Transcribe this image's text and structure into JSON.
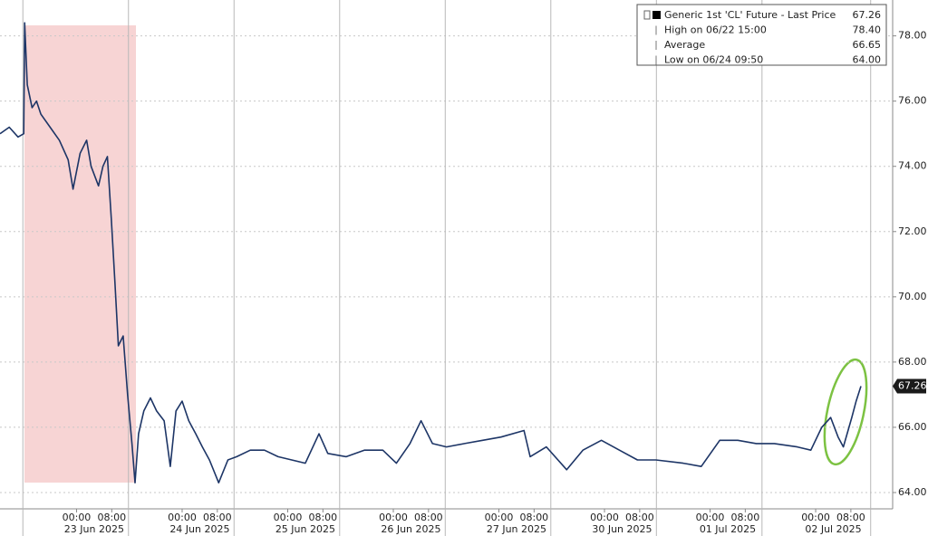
{
  "chart_data": {
    "type": "line",
    "x": [
      -17.4,
      -15.3,
      -13.3,
      -12.0,
      -11.8,
      -11.2,
      -10.1,
      -9.1,
      -8.1,
      -6.0,
      -3.9,
      -1.9,
      -0.8,
      0.8,
      2.3,
      3.3,
      5.0,
      6.0,
      7.0,
      7.9,
      8.7,
      9.5,
      10.6,
      11.6,
      12.6,
      13.3,
      14.1,
      15.3,
      16.8,
      18.2,
      19.9,
      21.3,
      22.6,
      24.0,
      25.5,
      27.1,
      28.6,
      30.2,
      32.3,
      34.4,
      36.4,
      39.5,
      42.7,
      45.8,
      48.9,
      52.0,
      55.1,
      57.1,
      61.3,
      65.4,
      69.6,
      72.7,
      75.8,
      78.3,
      80.9,
      84.1,
      88.2,
      92.3,
      96.5,
      101.7,
      103.1,
      106.8,
      111.4,
      115.1,
      119.3,
      123.4,
      127.5,
      131.7,
      137.9,
      142.0,
      146.2,
      150.3,
      154.5,
      158.6,
      163.8,
      166.9,
      169.4,
      171.4,
      173.1,
      174.3,
      176.2,
      177.2,
      178.3
    ],
    "series": [
      {
        "name": "Generic 1st 'CL' Future - Last Price",
        "color": "#1d3566",
        "values": [
          75.0,
          75.2,
          74.9,
          75.0,
          78.4,
          76.5,
          75.8,
          76.0,
          75.6,
          75.2,
          74.8,
          74.2,
          73.3,
          74.4,
          74.8,
          74.0,
          73.4,
          74.0,
          74.3,
          72.4,
          70.5,
          68.5,
          68.8,
          67.0,
          65.5,
          64.3,
          65.8,
          66.5,
          66.9,
          66.5,
          66.2,
          64.8,
          66.5,
          66.8,
          66.2,
          65.8,
          65.4,
          65.0,
          64.3,
          65.0,
          65.1,
          65.3,
          65.3,
          65.1,
          65.0,
          64.9,
          65.8,
          65.2,
          65.1,
          65.3,
          65.3,
          64.9,
          65.5,
          66.2,
          65.5,
          65.4,
          65.5,
          65.6,
          65.7,
          65.9,
          65.1,
          65.4,
          64.7,
          65.3,
          65.6,
          65.3,
          65.0,
          65.0,
          64.9,
          64.8,
          65.6,
          65.6,
          65.5,
          65.5,
          65.4,
          65.3,
          66.0,
          66.3,
          65.7,
          65.4,
          66.3,
          66.8,
          67.26
        ]
      }
    ],
    "legend_stats": [
      {
        "label": "High on 06/22 15:00",
        "value": "78.40"
      },
      {
        "label": "Average",
        "value": "66.65"
      },
      {
        "label": "Low on 06/24 09:50",
        "value": "64.00"
      }
    ],
    "legend_position": "upper right",
    "xlim": [
      -17.4,
      185.5
    ],
    "ylim": [
      63.5,
      79.1
    ],
    "yticks": [
      {
        "value": 64,
        "label": "64.00"
      },
      {
        "value": 66,
        "label": "66.00"
      },
      {
        "value": 68,
        "label": "68.00"
      },
      {
        "value": 70,
        "label": "70.00"
      },
      {
        "value": 72,
        "label": "72.00"
      },
      {
        "value": 74,
        "label": "74.00"
      },
      {
        "value": 76,
        "label": "76.00"
      },
      {
        "value": 78,
        "label": "78.00"
      }
    ],
    "xticks": [
      {
        "value": 0,
        "label": "00:00"
      },
      {
        "value": 8,
        "label": "08:00"
      },
      {
        "value": 24,
        "label": "00:00"
      },
      {
        "value": 32,
        "label": "08:00"
      },
      {
        "value": 48,
        "label": "00:00"
      },
      {
        "value": 56,
        "label": "08:00"
      },
      {
        "value": 72,
        "label": "00:00"
      },
      {
        "value": 80,
        "label": "08:00"
      },
      {
        "value": 96,
        "label": "00:00"
      },
      {
        "value": 104,
        "label": "08:00"
      },
      {
        "value": 120,
        "label": "00:00"
      },
      {
        "value": 128,
        "label": "08:00"
      },
      {
        "value": 144,
        "label": "00:00"
      },
      {
        "value": 152,
        "label": "08:00"
      },
      {
        "value": 168,
        "label": "00:00"
      },
      {
        "value": 176,
        "label": "08:00"
      }
    ],
    "xticks_days": [
      {
        "value": 4,
        "label": "23 Jun 2025"
      },
      {
        "value": 28,
        "label": "24 Jun 2025"
      },
      {
        "value": 52,
        "label": "25 Jun 2025"
      },
      {
        "value": 76,
        "label": "26 Jun 2025"
      },
      {
        "value": 100,
        "label": "27 Jun 2025"
      },
      {
        "value": 124,
        "label": "30 Jun 2025"
      },
      {
        "value": 148,
        "label": "01 Jul 2025"
      },
      {
        "value": 172,
        "label": "02 Jul 2025"
      }
    ],
    "grid": true
  }
}
